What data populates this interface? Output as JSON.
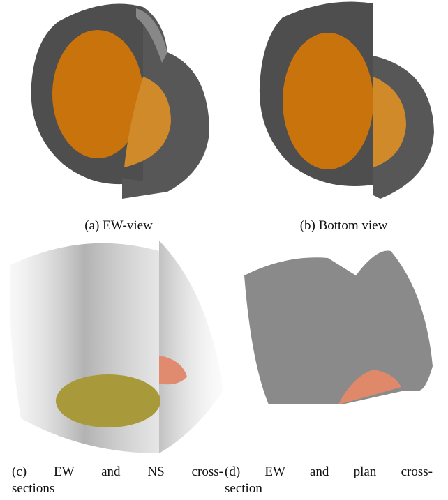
{
  "figure": {
    "panels": [
      {
        "caption": "(a) EW-view"
      },
      {
        "caption": "(b) Bottom view"
      },
      {
        "caption_lines": [
          "(c) EW and NS cross-",
          "sections"
        ]
      },
      {
        "caption_lines": [
          "(d) EW and plan cross-",
          "section"
        ]
      }
    ]
  }
}
